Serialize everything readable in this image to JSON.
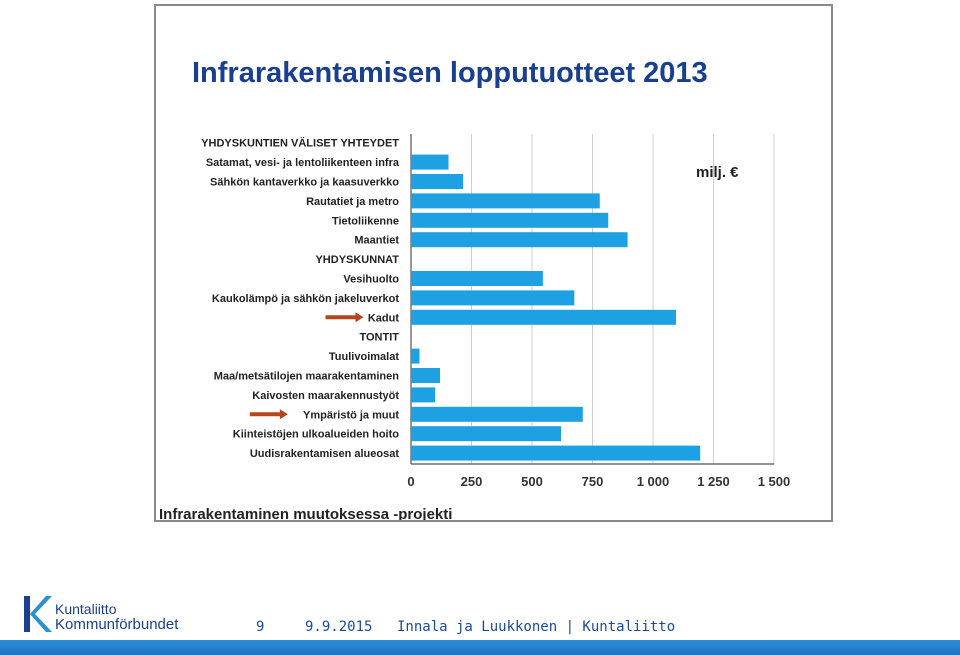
{
  "chart_data": {
    "type": "bar",
    "orientation": "horizontal",
    "title": "Infrarakentamisen lopputuotteet 2013",
    "unit_label": "milj. €",
    "source_label": "Infrarakentaminen muutoksessa -projekti",
    "xlim": [
      0,
      1500
    ],
    "x_ticks": [
      0,
      250,
      500,
      750,
      1000,
      1250,
      1500
    ],
    "x_tick_labels": [
      "0",
      "250",
      "500",
      "750",
      "1 000",
      "1 250",
      "1 500"
    ],
    "rows": [
      {
        "label": "YHDYSKUNTIEN VÄLISET YHTEYDET",
        "header": true,
        "value": null
      },
      {
        "label": "Satamat, vesi- ja lentoliikenteen infra",
        "value": 155
      },
      {
        "label": "Sähkön kantaverkko ja kaasuverkko",
        "value": 215
      },
      {
        "label": "Rautatiet ja metro",
        "value": 780
      },
      {
        "label": "Tietoliikenne",
        "value": 815
      },
      {
        "label": "Maantiet",
        "value": 895
      },
      {
        "label": "YHDYSKUNNAT",
        "header": true,
        "value": null
      },
      {
        "label": "Vesihuolto",
        "value": 545
      },
      {
        "label": "Kaukolämpö ja sähkön jakeluverkot",
        "value": 675
      },
      {
        "label": "Kadut",
        "value": 1095,
        "arrow": true
      },
      {
        "label": "TONTIT",
        "header": true,
        "value": null
      },
      {
        "label": "Tuulivoimalat",
        "value": 35
      },
      {
        "label": "Maa/metsätilojen maarakentaminen",
        "value": 120
      },
      {
        "label": "Kaivosten maarakennustyöt",
        "value": 100
      },
      {
        "label": "Ympäristö ja muut",
        "value": 710,
        "arrow": true
      },
      {
        "label": "Kiinteistöjen ulkoalueiden hoito",
        "value": 620
      },
      {
        "label": "Uudisrakentamisen alueosat",
        "value": 1195
      }
    ],
    "grid": true,
    "legend": "none"
  },
  "colors": {
    "bar": "#1ea1e3",
    "arrow": "#b5461c",
    "title": "#1a3f8f",
    "footer_text": "#1a4a9c"
  },
  "footer": {
    "page_number": "9",
    "date": "9.9.2015",
    "authors": "Innala ja Luukkonen | Kuntaliitto",
    "logo_line1": "Kuntaliitto",
    "logo_line2": "Kommunförbundet",
    "logo_icon": "kuntaliitto-k-logo-icon"
  }
}
